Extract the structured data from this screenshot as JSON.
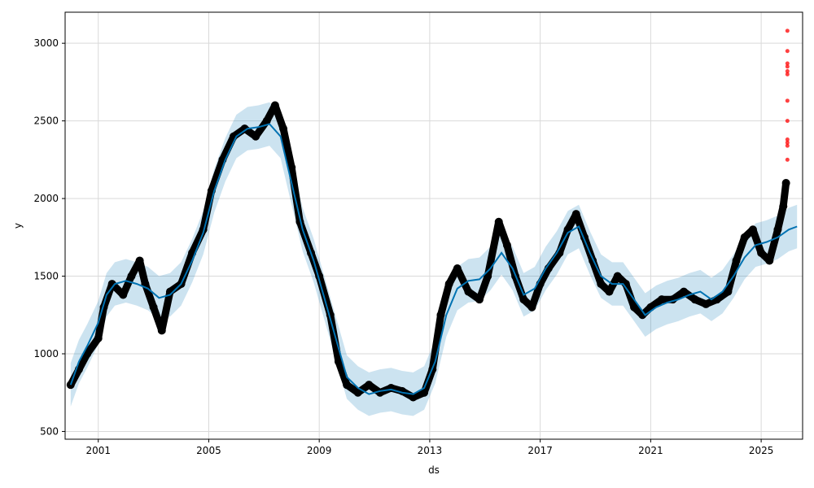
{
  "chart_data": {
    "type": "scatter",
    "xlabel": "ds",
    "ylabel": "y",
    "x_tick_labels": [
      "2001",
      "2005",
      "2009",
      "2013",
      "2017",
      "2021",
      "2025"
    ],
    "x_ticks": [
      2001,
      2005,
      2009,
      2013,
      2017,
      2021,
      2025
    ],
    "y_tick_labels": [
      "500",
      "1000",
      "1500",
      "2000",
      "2500",
      "3000"
    ],
    "y_ticks": [
      500,
      1000,
      1500,
      2000,
      2500,
      3000
    ],
    "xlim": [
      1999.8,
      2026.5
    ],
    "ylim": [
      450,
      3200
    ],
    "grid": true,
    "colors": {
      "observed": "#000000",
      "forecast_line": "#0072B2",
      "uncertainty_band": "#0072B2",
      "outliers": "#ff0000",
      "grid": "#d9d9d9"
    },
    "series": [
      {
        "role": "observed",
        "x": [
          2000.0,
          2000.3,
          2000.6,
          2001.0,
          2001.2,
          2001.5,
          2001.9,
          2002.2,
          2002.5,
          2002.7,
          2003.0,
          2003.3,
          2003.6,
          2004.0,
          2004.4,
          2004.8,
          2005.1,
          2005.5,
          2005.9,
          2006.3,
          2006.7,
          2007.1,
          2007.4,
          2007.7,
          2008.0,
          2008.3,
          2008.7,
          2009.0,
          2009.4,
          2009.7,
          2010.0,
          2010.4,
          2010.8,
          2011.2,
          2011.6,
          2012.0,
          2012.4,
          2012.8,
          2013.1,
          2013.4,
          2013.7,
          2014.0,
          2014.4,
          2014.8,
          2015.1,
          2015.5,
          2015.8,
          2016.1,
          2016.4,
          2016.7,
          2017.0,
          2017.3,
          2017.7,
          2018.0,
          2018.3,
          2018.6,
          2018.9,
          2019.2,
          2019.5,
          2019.8,
          2020.1,
          2020.4,
          2020.7,
          2021.0,
          2021.4,
          2021.8,
          2022.2,
          2022.6,
          2023.0,
          2023.4,
          2023.8,
          2024.1,
          2024.4,
          2024.7,
          2025.0,
          2025.3,
          2025.6,
          2025.8,
          2025.9
        ],
        "y": [
          800,
          900,
          1000,
          1100,
          1300,
          1450,
          1380,
          1500,
          1600,
          1450,
          1300,
          1150,
          1400,
          1450,
          1650,
          1800,
          2050,
          2250,
          2400,
          2450,
          2400,
          2500,
          2600,
          2450,
          2200,
          1850,
          1650,
          1500,
          1250,
          950,
          800,
          750,
          800,
          750,
          780,
          760,
          720,
          750,
          900,
          1250,
          1450,
          1550,
          1400,
          1350,
          1500,
          1850,
          1700,
          1500,
          1350,
          1300,
          1450,
          1550,
          1650,
          1800,
          1900,
          1750,
          1600,
          1450,
          1400,
          1500,
          1450,
          1300,
          1250,
          1300,
          1350,
          1350,
          1400,
          1350,
          1320,
          1350,
          1400,
          1600,
          1750,
          1800,
          1650,
          1600,
          1800,
          1950,
          2100
        ]
      },
      {
        "role": "forecast_line",
        "x": [
          2000.0,
          2000.3,
          2000.6,
          2001.0,
          2001.3,
          2001.6,
          2002.0,
          2002.4,
          2002.8,
          2003.2,
          2003.6,
          2004.0,
          2004.4,
          2004.8,
          2005.2,
          2005.6,
          2006.0,
          2006.4,
          2006.8,
          2007.2,
          2007.6,
          2008.0,
          2008.4,
          2008.8,
          2009.2,
          2009.6,
          2010.0,
          2010.4,
          2010.8,
          2011.2,
          2011.6,
          2012.0,
          2012.4,
          2012.8,
          2013.2,
          2013.6,
          2014.0,
          2014.4,
          2014.8,
          2015.2,
          2015.6,
          2016.0,
          2016.4,
          2016.8,
          2017.2,
          2017.6,
          2018.0,
          2018.4,
          2018.8,
          2019.2,
          2019.6,
          2020.0,
          2020.4,
          2020.8,
          2021.2,
          2021.6,
          2022.0,
          2022.4,
          2022.8,
          2023.2,
          2023.6,
          2024.0,
          2024.4,
          2024.8,
          2025.2,
          2025.6,
          2026.0,
          2026.3
        ],
        "y": [
          800,
          950,
          1050,
          1200,
          1380,
          1450,
          1470,
          1450,
          1420,
          1360,
          1380,
          1450,
          1600,
          1780,
          2050,
          2250,
          2400,
          2450,
          2460,
          2480,
          2400,
          2100,
          1800,
          1600,
          1350,
          1100,
          850,
          780,
          740,
          760,
          770,
          750,
          740,
          780,
          950,
          1250,
          1420,
          1470,
          1480,
          1550,
          1650,
          1550,
          1380,
          1420,
          1550,
          1650,
          1780,
          1820,
          1650,
          1500,
          1450,
          1450,
          1350,
          1250,
          1300,
          1330,
          1350,
          1380,
          1400,
          1350,
          1400,
          1500,
          1620,
          1700,
          1720,
          1750,
          1800,
          1820
        ]
      },
      {
        "role": "outliers",
        "x": [
          2025.95,
          2025.95,
          2025.95,
          2025.95,
          2025.95,
          2025.95,
          2025.95,
          2025.95,
          2025.95,
          2025.95,
          2025.95,
          2025.95
        ],
        "y": [
          3080,
          2950,
          2870,
          2850,
          2820,
          2800,
          2630,
          2500,
          2380,
          2360,
          2340,
          2250
        ]
      }
    ],
    "uncertainty_band_offset": 140
  }
}
